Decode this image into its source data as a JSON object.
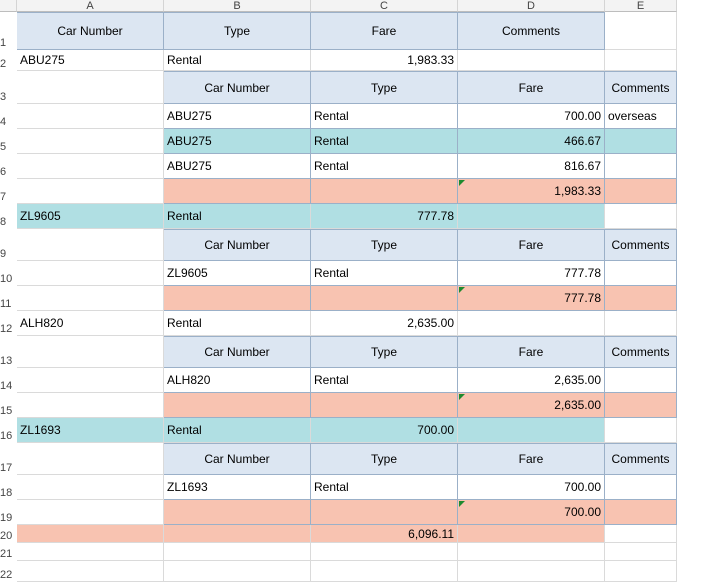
{
  "columns": [
    "A",
    "B",
    "C",
    "D",
    "E"
  ],
  "rows": [
    "1",
    "2",
    "3",
    "4",
    "5",
    "6",
    "7",
    "8",
    "9",
    "10",
    "11",
    "12",
    "13",
    "14",
    "15",
    "16",
    "17",
    "18",
    "19",
    "20",
    "21",
    "22"
  ],
  "headers": {
    "car_number": "Car Number",
    "type": "Type",
    "fare": "Fare",
    "comments": "Comments"
  },
  "groups": [
    {
      "car": "ABU275",
      "type": "Rental",
      "fare": "1,983.33",
      "details": [
        {
          "car": "ABU275",
          "type": "Rental",
          "fare": "700.00",
          "comment": "overseas"
        },
        {
          "car": "ABU275",
          "type": "Rental",
          "fare": "466.67",
          "comment": ""
        },
        {
          "car": "ABU275",
          "type": "Rental",
          "fare": "816.67",
          "comment": ""
        }
      ],
      "subtotal": "1,983.33"
    },
    {
      "car": "ZL9605",
      "type": "Rental",
      "fare": "777.78",
      "details": [
        {
          "car": "ZL9605",
          "type": "Rental",
          "fare": "777.78",
          "comment": ""
        }
      ],
      "subtotal": "777.78"
    },
    {
      "car": "ALH820",
      "type": "Rental",
      "fare": "2,635.00",
      "details": [
        {
          "car": "ALH820",
          "type": "Rental",
          "fare": "2,635.00",
          "comment": ""
        }
      ],
      "subtotal": "2,635.00"
    },
    {
      "car": "ZL1693",
      "type": "Rental",
      "fare": "700.00",
      "details": [
        {
          "car": "ZL1693",
          "type": "Rental",
          "fare": "700.00",
          "comment": ""
        }
      ],
      "subtotal": "700.00"
    }
  ],
  "grand_total": "6,096.11",
  "colors": {
    "header": "#dce6f2",
    "teal": "#b0dfe3",
    "salmon": "#f8c3b1",
    "grid": "#dadada"
  }
}
